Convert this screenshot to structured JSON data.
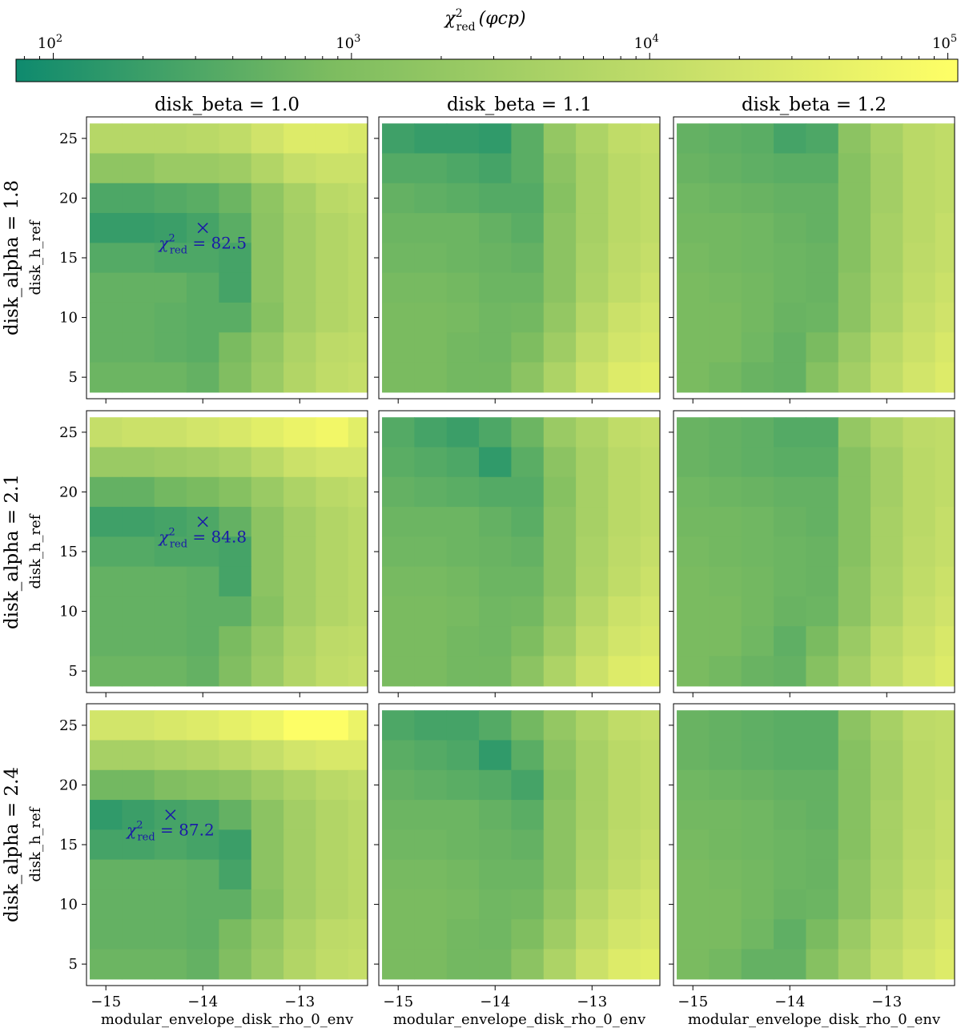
{
  "chart_data": {
    "type": "heatmap",
    "layout": "3x3 grid of heatmaps with a shared log-scale colorbar",
    "colorbar": {
      "label": "χ²red(φcp)",
      "label_main": "χ",
      "label_sup": "2",
      "label_sub": "red",
      "label_arg": "(φcp)",
      "scale": "log",
      "range": [
        75,
        108000
      ],
      "colors": [
        "#0e8a6e",
        "#7cbc60",
        "#cfe36a",
        "#ffff66"
      ],
      "ticks": [
        {
          "value": 100,
          "base": "10",
          "exp": "2"
        },
        {
          "value": 1000,
          "base": "10",
          "exp": "3"
        },
        {
          "value": 10000,
          "base": "10",
          "exp": "4"
        },
        {
          "value": 100000,
          "base": "10",
          "exp": "5"
        }
      ]
    },
    "x_axis": {
      "label": "modular_envelope_disk_rho_0_env",
      "range": [
        -15.2,
        -12.3
      ],
      "cell_centers": [
        -15.0,
        -14.6667,
        -14.3333,
        -14.0,
        -13.6667,
        -13.3333,
        -13.0,
        -12.6667,
        -12.3333
      ],
      "ticks": [
        {
          "value": -15,
          "label": "−15"
        },
        {
          "value": -14,
          "label": "−14"
        },
        {
          "value": -13,
          "label": "−13"
        }
      ]
    },
    "y_axis": {
      "label": "disk_h_ref",
      "range": [
        3.2,
        26.8
      ],
      "cell_centers": [
        5,
        7.5,
        10,
        12.5,
        15,
        17.5,
        20,
        22.5,
        25
      ],
      "ticks": [
        {
          "value": 5,
          "label": "5"
        },
        {
          "value": 10,
          "label": "10"
        },
        {
          "value": 15,
          "label": "15"
        },
        {
          "value": 20,
          "label": "20"
        },
        {
          "value": 25,
          "label": "25"
        }
      ]
    },
    "column_titles": [
      "disk_beta = 1.0",
      "disk_beta = 1.1",
      "disk_beta = 1.2"
    ],
    "row_titles": [
      "disk_alpha = 1.8",
      "disk_alpha = 2.1",
      "disk_alpha = 2.4"
    ],
    "row_cells_note": "grids listed top row (disk_h_ref = 25) to bottom row (disk_h_ref = 5)",
    "panels": [
      {
        "row": 0,
        "col": 0,
        "grid": [
          [
            7000,
            7000,
            7000,
            8000,
            10000,
            18000,
            30000,
            30000,
            25000
          ],
          [
            1700,
            1700,
            2500,
            2500,
            3000,
            6000,
            12000,
            15000,
            15000
          ],
          [
            300,
            300,
            350,
            400,
            600,
            1700,
            4000,
            8000,
            10000
          ],
          [
            180,
            180,
            200,
            250,
            400,
            1500,
            3500,
            6000,
            8000
          ],
          [
            350,
            350,
            300,
            300,
            250,
            1500,
            3500,
            6000,
            8000
          ],
          [
            500,
            500,
            500,
            400,
            250,
            1500,
            3500,
            6000,
            8000
          ],
          [
            500,
            500,
            450,
            400,
            400,
            1200,
            3500,
            6000,
            8000
          ],
          [
            500,
            500,
            450,
            400,
            800,
            2000,
            5000,
            9000,
            10000
          ],
          [
            600,
            600,
            600,
            500,
            1000,
            2500,
            6000,
            10000,
            12000
          ]
        ],
        "best_fit": {
          "x": -14.0,
          "y": 17.5,
          "label_prefix": "χ",
          "label_sup": "2",
          "label_sub": "red",
          "label_value": " = 82.5"
        }
      },
      {
        "row": 0,
        "col": 1,
        "grid": [
          [
            220,
            180,
            180,
            160,
            400,
            2000,
            5000,
            10000,
            12000
          ],
          [
            350,
            350,
            300,
            250,
            400,
            1500,
            4000,
            8000,
            10000
          ],
          [
            500,
            450,
            400,
            350,
            350,
            1200,
            4000,
            8000,
            10000
          ],
          [
            600,
            600,
            600,
            500,
            400,
            1500,
            4000,
            8000,
            10000
          ],
          [
            650,
            650,
            600,
            550,
            500,
            1500,
            4500,
            9000,
            12000
          ],
          [
            750,
            750,
            700,
            600,
            600,
            1500,
            5000,
            10000,
            15000
          ],
          [
            800,
            800,
            750,
            650,
            700,
            2000,
            7000,
            15000,
            20000
          ],
          [
            800,
            800,
            700,
            650,
            900,
            3000,
            10000,
            20000,
            25000
          ],
          [
            800,
            800,
            700,
            700,
            1500,
            5000,
            15000,
            30000,
            35000
          ]
        ]
      },
      {
        "row": 0,
        "col": 2,
        "grid": [
          [
            500,
            450,
            400,
            250,
            300,
            1500,
            4000,
            8000,
            10000
          ],
          [
            550,
            500,
            450,
            400,
            400,
            1200,
            3500,
            8000,
            10000
          ],
          [
            650,
            600,
            550,
            500,
            500,
            1200,
            3500,
            8000,
            10000
          ],
          [
            700,
            700,
            650,
            550,
            500,
            1200,
            4000,
            8000,
            12000
          ],
          [
            750,
            700,
            650,
            600,
            550,
            1200,
            4000,
            9000,
            12000
          ],
          [
            800,
            750,
            700,
            600,
            550,
            1500,
            4500,
            10000,
            15000
          ],
          [
            800,
            800,
            700,
            550,
            600,
            1500,
            5000,
            12000,
            18000
          ],
          [
            800,
            800,
            650,
            500,
            800,
            2500,
            8000,
            15000,
            25000
          ],
          [
            800,
            700,
            550,
            500,
            1200,
            3500,
            10000,
            20000,
            30000
          ]
        ]
      },
      {
        "row": 1,
        "col": 0,
        "grid": [
          [
            12000,
            15000,
            15000,
            20000,
            25000,
            35000,
            50000,
            65000,
            35000
          ],
          [
            2500,
            2500,
            3000,
            3500,
            4500,
            8000,
            15000,
            20000,
            20000
          ],
          [
            500,
            500,
            700,
            800,
            1200,
            2500,
            5000,
            8000,
            10000
          ],
          [
            220,
            220,
            250,
            300,
            500,
            1500,
            3500,
            6000,
            8000
          ],
          [
            350,
            350,
            300,
            300,
            250,
            1500,
            3500,
            6000,
            8000
          ],
          [
            500,
            500,
            500,
            450,
            250,
            1500,
            3500,
            6000,
            8000
          ],
          [
            500,
            500,
            500,
            450,
            450,
            1200,
            3500,
            6000,
            8000
          ],
          [
            500,
            500,
            500,
            450,
            800,
            2000,
            5000,
            9000,
            10000
          ],
          [
            600,
            600,
            600,
            500,
            1000,
            2500,
            6000,
            10000,
            12000
          ]
        ],
        "best_fit": {
          "x": -14.0,
          "y": 17.5,
          "label_prefix": "χ",
          "label_sup": "2",
          "label_sub": "red",
          "label_value": " = 84.8"
        }
      },
      {
        "row": 1,
        "col": 1,
        "grid": [
          [
            350,
            250,
            200,
            300,
            600,
            2500,
            5000,
            10000,
            12000
          ],
          [
            400,
            350,
            300,
            160,
            400,
            1500,
            4000,
            8000,
            10000
          ],
          [
            500,
            450,
            400,
            350,
            350,
            1200,
            4000,
            8000,
            10000
          ],
          [
            600,
            600,
            600,
            500,
            400,
            1500,
            4000,
            8000,
            10000
          ],
          [
            650,
            650,
            600,
            550,
            500,
            1500,
            4500,
            9000,
            12000
          ],
          [
            750,
            750,
            700,
            600,
            600,
            1500,
            5000,
            10000,
            15000
          ],
          [
            800,
            800,
            750,
            650,
            700,
            2000,
            7000,
            15000,
            20000
          ],
          [
            800,
            800,
            700,
            650,
            900,
            3000,
            10000,
            20000,
            25000
          ],
          [
            800,
            800,
            700,
            700,
            1500,
            5000,
            15000,
            30000,
            35000
          ]
        ]
      },
      {
        "row": 1,
        "col": 2,
        "grid": [
          [
            550,
            500,
            450,
            350,
            350,
            2000,
            5000,
            9000,
            10000
          ],
          [
            550,
            500,
            450,
            400,
            400,
            1200,
            3500,
            8000,
            10000
          ],
          [
            650,
            600,
            550,
            500,
            500,
            1200,
            3500,
            8000,
            10000
          ],
          [
            700,
            700,
            650,
            550,
            500,
            1200,
            4000,
            8000,
            12000
          ],
          [
            750,
            700,
            650,
            600,
            550,
            1200,
            4000,
            9000,
            12000
          ],
          [
            800,
            750,
            700,
            600,
            550,
            1500,
            4500,
            10000,
            15000
          ],
          [
            800,
            800,
            700,
            550,
            600,
            1500,
            5000,
            12000,
            18000
          ],
          [
            800,
            800,
            650,
            450,
            800,
            2500,
            8000,
            15000,
            25000
          ],
          [
            800,
            700,
            550,
            500,
            1200,
            3500,
            10000,
            20000,
            30000
          ]
        ]
      },
      {
        "row": 2,
        "col": 0,
        "grid": [
          [
            20000,
            20000,
            25000,
            30000,
            40000,
            55000,
            100000,
            100000,
            50000
          ],
          [
            4000,
            4000,
            5000,
            6000,
            8000,
            12000,
            20000,
            25000,
            25000
          ],
          [
            700,
            700,
            1000,
            1200,
            1500,
            3000,
            5000,
            8000,
            10000
          ],
          [
            160,
            200,
            250,
            300,
            500,
            1500,
            3500,
            6000,
            8000
          ],
          [
            250,
            250,
            300,
            250,
            200,
            1500,
            3500,
            6000,
            8000
          ],
          [
            500,
            500,
            500,
            450,
            250,
            1500,
            3500,
            6000,
            8000
          ],
          [
            500,
            500,
            500,
            450,
            450,
            1200,
            3500,
            6000,
            8000
          ],
          [
            500,
            500,
            500,
            450,
            800,
            2000,
            5000,
            9000,
            10000
          ],
          [
            600,
            600,
            600,
            500,
            1000,
            2500,
            6000,
            10000,
            12000
          ]
        ],
        "best_fit": {
          "x": -14.3333,
          "y": 17.5,
          "label_prefix": "χ",
          "label_sup": "2",
          "label_sub": "red",
          "label_value": " = 87.2"
        }
      },
      {
        "row": 2,
        "col": 1,
        "grid": [
          [
            300,
            250,
            250,
            350,
            700,
            2000,
            5000,
            10000,
            12000
          ],
          [
            400,
            350,
            300,
            160,
            400,
            1500,
            4000,
            8000,
            10000
          ],
          [
            500,
            450,
            400,
            350,
            250,
            1200,
            4000,
            8000,
            10000
          ],
          [
            600,
            600,
            600,
            500,
            400,
            1500,
            4000,
            8000,
            10000
          ],
          [
            650,
            650,
            600,
            550,
            500,
            1500,
            4500,
            9000,
            12000
          ],
          [
            750,
            750,
            700,
            600,
            600,
            1500,
            5000,
            10000,
            15000
          ],
          [
            800,
            800,
            750,
            650,
            700,
            2000,
            7000,
            15000,
            20000
          ],
          [
            800,
            800,
            700,
            650,
            900,
            3000,
            10000,
            20000,
            25000
          ],
          [
            800,
            800,
            700,
            700,
            1500,
            5000,
            15000,
            30000,
            35000
          ]
        ]
      },
      {
        "row": 2,
        "col": 2,
        "grid": [
          [
            550,
            500,
            450,
            400,
            400,
            1500,
            4000,
            9000,
            10000
          ],
          [
            550,
            500,
            450,
            400,
            400,
            1200,
            3500,
            8000,
            10000
          ],
          [
            650,
            600,
            550,
            500,
            500,
            1200,
            3500,
            8000,
            10000
          ],
          [
            700,
            700,
            650,
            550,
            500,
            1200,
            4000,
            8000,
            12000
          ],
          [
            750,
            700,
            650,
            600,
            550,
            1200,
            4000,
            9000,
            12000
          ],
          [
            800,
            750,
            700,
            600,
            550,
            1500,
            4500,
            10000,
            15000
          ],
          [
            800,
            800,
            700,
            550,
            600,
            1500,
            5000,
            12000,
            18000
          ],
          [
            800,
            800,
            650,
            450,
            800,
            2500,
            8000,
            15000,
            25000
          ],
          [
            800,
            700,
            500,
            500,
            1200,
            3500,
            10000,
            20000,
            30000
          ]
        ]
      }
    ]
  }
}
